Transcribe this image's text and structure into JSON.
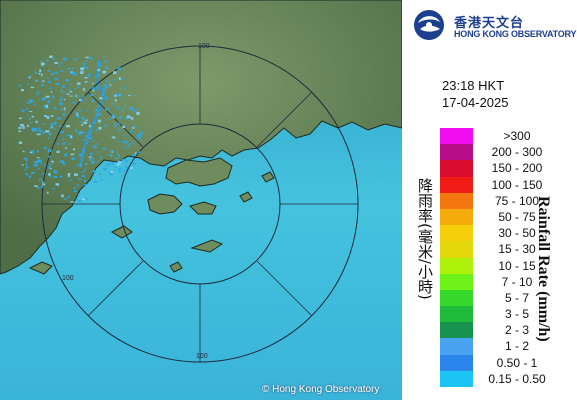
{
  "logo": {
    "name_cn": "香港天文台",
    "name_en": "HONG KONG OBSERVATORY"
  },
  "timestamp": {
    "time": "23:18 HKT",
    "date": "17-04-2025"
  },
  "map": {
    "range_ring_label": "100",
    "copyright": "© Hong Kong Observatory",
    "colors": {
      "sea": "#45c3de",
      "land": "#5f7f54",
      "echo": "#2aa7e8",
      "ring": "#1e2a3a"
    }
  },
  "legend": {
    "title_cn": "降雨率(毫米/小時)",
    "title_en": "Rainfall Rate (mm/h)",
    "classes": [
      {
        "label": ">300",
        "color": "#f20cf2"
      },
      {
        "label": "200 - 300",
        "color": "#b80c8a"
      },
      {
        "label": "150 - 200",
        "color": "#d90b2e"
      },
      {
        "label": "100 - 150",
        "color": "#ef1b14"
      },
      {
        "label": "75 - 100",
        "color": "#f3760f"
      },
      {
        "label": "50 - 75",
        "color": "#f3ac0c"
      },
      {
        "label": "30 - 50",
        "color": "#f5cf0c"
      },
      {
        "label": "15 - 30",
        "color": "#e3d80c"
      },
      {
        "label": "10 - 15",
        "color": "#aef20c"
      },
      {
        "label": "7 - 10",
        "color": "#6ef21a"
      },
      {
        "label": "5 - 7",
        "color": "#35d82b"
      },
      {
        "label": "3 - 5",
        "color": "#1fbb3b"
      },
      {
        "label": "2 - 3",
        "color": "#17934f"
      },
      {
        "label": "1 - 2",
        "color": "#4aa2f2"
      },
      {
        "label": "0.50 - 1",
        "color": "#2b86ec"
      },
      {
        "label": "0.15 - 0.50",
        "color": "#1cc4f4"
      }
    ]
  }
}
